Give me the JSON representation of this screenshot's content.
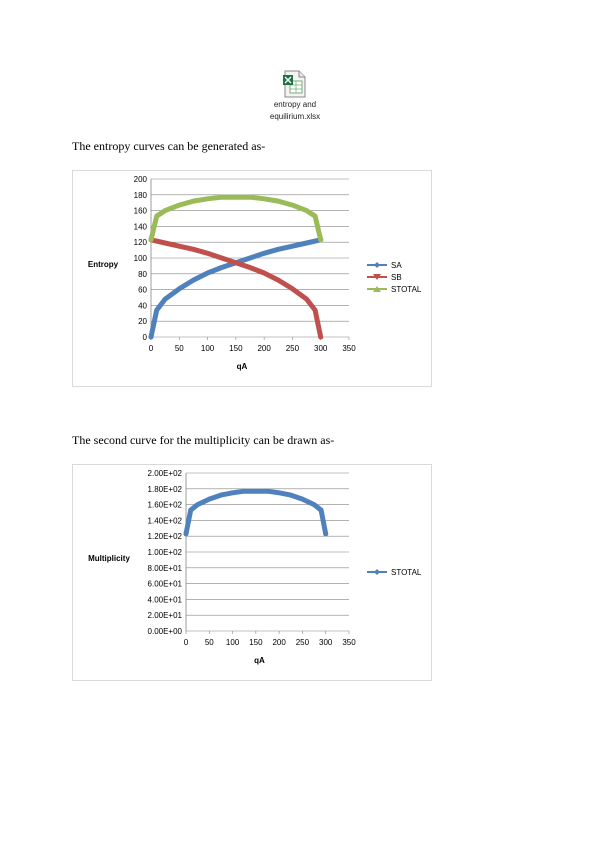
{
  "attachment": {
    "name_line1": "entropy and",
    "name_line2": "equilirium.xlsx",
    "icon": "excel-file-icon"
  },
  "paragraphs": {
    "entropy_intro": "The entropy curves can be generated as-",
    "multiplicity_intro": "The second curve for the multiplicity can be drawn as-"
  },
  "colors": {
    "SA": "#4F81BD",
    "SB": "#C0504D",
    "STOTAL": "#9BBB59",
    "STOTAL_multiplicity": "#4F81BD",
    "grid": "#868686"
  },
  "chart_data": [
    {
      "type": "scatter",
      "xlabel": "qA",
      "ylabel": "Entropy",
      "xlim": [
        0,
        350
      ],
      "ylim": [
        0,
        200
      ],
      "xticks": [
        "0",
        "50",
        "100",
        "150",
        "200",
        "250",
        "300",
        "350"
      ],
      "yticks": [
        "0",
        "20",
        "40",
        "60",
        "80",
        "100",
        "120",
        "140",
        "160",
        "180",
        "200"
      ],
      "legend_position": "right",
      "grid": true,
      "series": [
        {
          "name": "SA",
          "x": [
            0,
            10,
            25,
            50,
            75,
            100,
            125,
            150,
            175,
            200,
            225,
            250,
            275,
            300
          ],
          "y": [
            0,
            34,
            48,
            61,
            72,
            81,
            88,
            94,
            100,
            106,
            111,
            115,
            119,
            123
          ]
        },
        {
          "name": "SB",
          "x": [
            0,
            25,
            50,
            75,
            100,
            125,
            150,
            175,
            200,
            225,
            250,
            275,
            290,
            300
          ],
          "y": [
            123,
            119,
            115,
            111,
            106,
            100,
            94,
            88,
            81,
            72,
            61,
            48,
            34,
            0
          ]
        },
        {
          "name": "STOTAL",
          "x": [
            0,
            10,
            25,
            50,
            75,
            100,
            125,
            150,
            175,
            200,
            225,
            250,
            275,
            290,
            300
          ],
          "y": [
            123,
            153,
            160,
            167,
            172,
            175,
            177,
            177,
            177,
            175,
            172,
            167,
            160,
            153,
            123
          ]
        }
      ]
    },
    {
      "type": "scatter",
      "xlabel": "qA",
      "ylabel": "Multiplicity",
      "xlim": [
        0,
        350
      ],
      "ylim": [
        0,
        200
      ],
      "xticks": [
        "0",
        "50",
        "100",
        "150",
        "200",
        "250",
        "300",
        "350"
      ],
      "yticks": [
        "0.00E+00",
        "2.00E+01",
        "4.00E+01",
        "6.00E+01",
        "8.00E+01",
        "1.00E+02",
        "1.20E+02",
        "1.40E+02",
        "1.60E+02",
        "1.80E+02",
        "2.00E+02"
      ],
      "legend_position": "right",
      "grid": true,
      "series": [
        {
          "name": "STOTAL",
          "x": [
            0,
            10,
            25,
            50,
            75,
            100,
            125,
            150,
            175,
            200,
            225,
            250,
            275,
            290,
            300
          ],
          "y": [
            123,
            153,
            160,
            167,
            172,
            175,
            177,
            177,
            177,
            175,
            172,
            167,
            160,
            153,
            123
          ]
        }
      ]
    }
  ]
}
